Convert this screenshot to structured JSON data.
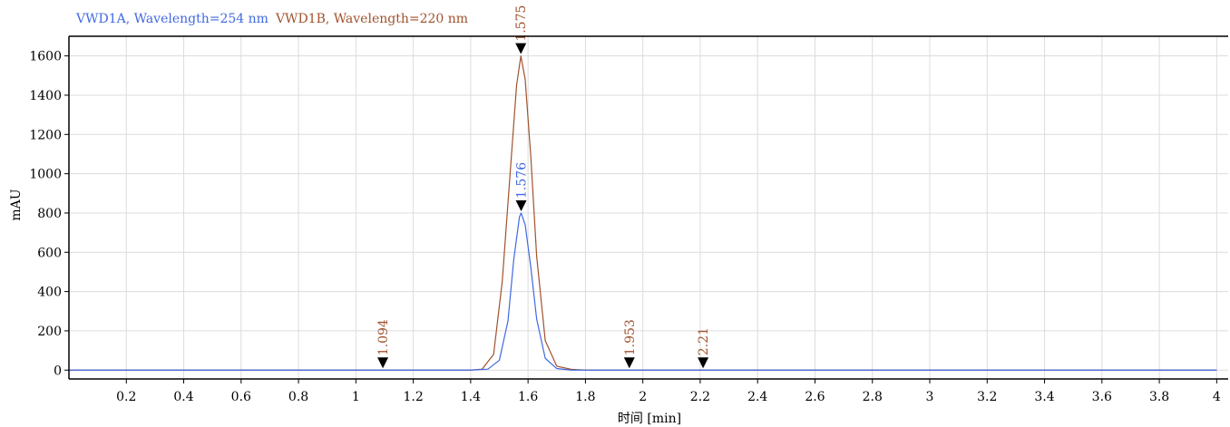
{
  "chart_data": {
    "type": "line",
    "title": "",
    "xlabel": "时间 [min]",
    "ylabel": "mAU",
    "xlim": [
      0.0,
      4.04
    ],
    "ylim": [
      -45,
      1700
    ],
    "grid": true,
    "x_ticks": [
      "0.2",
      "0.4",
      "0.6",
      "0.8",
      "1",
      "1.2",
      "1.4",
      "1.6",
      "1.8",
      "2",
      "2.2",
      "2.4",
      "2.6",
      "2.8",
      "3",
      "3.2",
      "3.4",
      "3.6",
      "3.8",
      "4"
    ],
    "y_ticks": [
      "0",
      "200",
      "400",
      "600",
      "800",
      "1000",
      "1200",
      "1400",
      "1600"
    ],
    "series": [
      {
        "name": "VWD1A, Wavelength=254 nm",
        "color": "#4169e1",
        "x": [
          0.0,
          1.4,
          1.46,
          1.5,
          1.53,
          1.55,
          1.57,
          1.576,
          1.59,
          1.61,
          1.63,
          1.66,
          1.7,
          1.75,
          4.0
        ],
        "values": [
          0,
          0,
          5,
          50,
          250,
          560,
          780,
          800,
          740,
          520,
          260,
          60,
          8,
          0,
          0
        ],
        "peaks": [
          {
            "time": 1.576,
            "height": 800,
            "label": "1.576"
          }
        ]
      },
      {
        "name": "VWD1B, Wavelength=220 nm",
        "color": "#a0522d",
        "x": [
          0.0,
          1.4,
          1.44,
          1.48,
          1.51,
          1.54,
          1.56,
          1.575,
          1.59,
          1.61,
          1.63,
          1.66,
          1.7,
          1.75,
          1.8,
          4.0
        ],
        "values": [
          0,
          0,
          5,
          80,
          450,
          1050,
          1450,
          1600,
          1480,
          1080,
          580,
          150,
          20,
          4,
          0,
          0
        ],
        "peaks": [
          {
            "time": 1.094,
            "height": 0,
            "label": "1.094"
          },
          {
            "time": 1.575,
            "height": 1600,
            "label": "1.575"
          },
          {
            "time": 1.953,
            "height": 0,
            "label": "1.953"
          },
          {
            "time": 2.21,
            "height": 0,
            "label": "2.21"
          }
        ]
      }
    ]
  }
}
